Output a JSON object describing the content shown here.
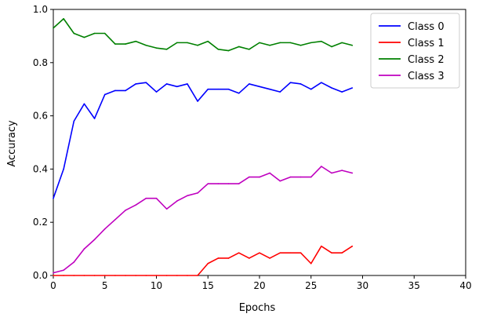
{
  "chart_data": {
    "type": "line",
    "title": "",
    "xlabel": "Epochs",
    "ylabel": "Accuracy",
    "xlim": [
      0,
      40
    ],
    "ylim": [
      0,
      1.0
    ],
    "xticks": [
      "0",
      "5",
      "10",
      "15",
      "20",
      "25",
      "30",
      "35",
      "40"
    ],
    "yticks": [
      "0.0",
      "0.2",
      "0.4",
      "0.6",
      "0.8",
      "1.0"
    ],
    "grid": false,
    "legend_position": "top-right",
    "x": [
      0,
      1,
      2,
      3,
      4,
      5,
      6,
      7,
      8,
      9,
      10,
      11,
      12,
      13,
      14,
      15,
      16,
      17,
      18,
      19,
      20,
      21,
      22,
      23,
      24,
      25,
      26,
      27,
      28,
      29
    ],
    "series": [
      {
        "name": "Class 0",
        "color": "#0000ff",
        "values": [
          0.29,
          0.4,
          0.58,
          0.645,
          0.59,
          0.68,
          0.695,
          0.695,
          0.72,
          0.725,
          0.69,
          0.72,
          0.71,
          0.72,
          0.655,
          0.7,
          0.7,
          0.7,
          0.685,
          0.72,
          0.71,
          0.7,
          0.69,
          0.725,
          0.72,
          0.7,
          0.725,
          0.705,
          0.69,
          0.705
        ]
      },
      {
        "name": "Class 1",
        "color": "#ff0000",
        "values": [
          0,
          0,
          0,
          0,
          0,
          0,
          0,
          0,
          0,
          0,
          0,
          0,
          0,
          0,
          0,
          0.045,
          0.065,
          0.065,
          0.085,
          0.065,
          0.085,
          0.065,
          0.085,
          0.085,
          0.085,
          0.045,
          0.11,
          0.085,
          0.085,
          0.11
        ]
      },
      {
        "name": "Class 2",
        "color": "#008000",
        "values": [
          0.93,
          0.965,
          0.91,
          0.895,
          0.91,
          0.91,
          0.87,
          0.87,
          0.88,
          0.865,
          0.855,
          0.85,
          0.875,
          0.875,
          0.865,
          0.88,
          0.85,
          0.845,
          0.86,
          0.85,
          0.875,
          0.865,
          0.875,
          0.875,
          0.865,
          0.875,
          0.88,
          0.86,
          0.875,
          0.865
        ]
      },
      {
        "name": "Class 3",
        "color": "#bf00bf",
        "values": [
          0.01,
          0.02,
          0.05,
          0.1,
          0.135,
          0.175,
          0.21,
          0.245,
          0.265,
          0.29,
          0.29,
          0.25,
          0.28,
          0.3,
          0.31,
          0.345,
          0.345,
          0.345,
          0.345,
          0.37,
          0.37,
          0.385,
          0.355,
          0.37,
          0.37,
          0.37,
          0.41,
          0.385,
          0.395,
          0.385
        ]
      }
    ]
  }
}
